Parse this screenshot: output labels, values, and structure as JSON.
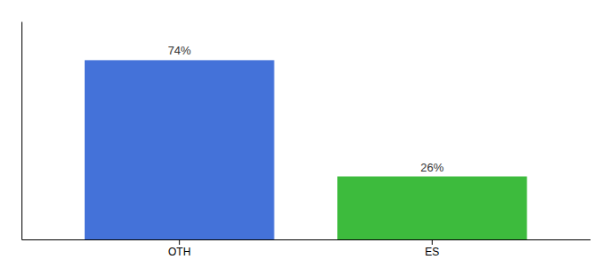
{
  "chart_data": {
    "type": "bar",
    "categories": [
      "OTH",
      "ES"
    ],
    "values": [
      74,
      26
    ],
    "value_labels": [
      "74%",
      "26%"
    ],
    "colors": [
      "#4472d9",
      "#3dbb3d"
    ],
    "ylim": [
      0,
      90
    ],
    "data_labels": true,
    "tick_labels": "x"
  }
}
